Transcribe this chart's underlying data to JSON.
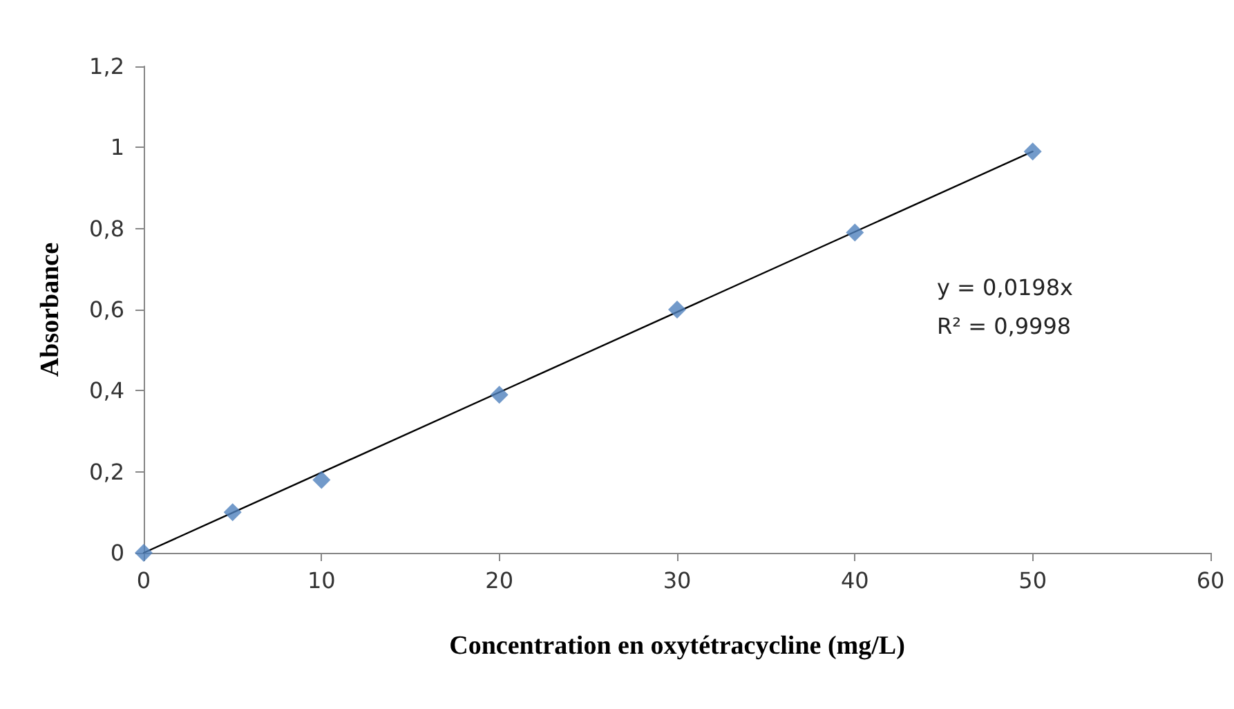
{
  "chart_data": {
    "type": "scatter",
    "xlabel": "Concentration en oxytétracycline (mg/L)",
    "ylabel": "Absorbance",
    "x": [
      0,
      5,
      10,
      20,
      30,
      40,
      50
    ],
    "series": [
      {
        "color": "#4f81bd",
        "marker": "diamond",
        "values": [
          0,
          0.1,
          0.18,
          0.39,
          0.6,
          0.79,
          0.99
        ]
      },
      {
        "type": "line",
        "color": "#000000",
        "marker": "none",
        "line_style": "solid",
        "x": [
          0,
          50
        ],
        "values": [
          0,
          0.99
        ]
      }
    ],
    "xlim": [
      0,
      60
    ],
    "xticks": [
      0,
      10,
      20,
      30,
      40,
      50,
      60
    ],
    "ylim": [
      0,
      1.2
    ],
    "yticks": [
      0,
      {
        "value": 0.2,
        "label": "0,2"
      },
      {
        "value": 0.4,
        "label": "0,4"
      },
      {
        "value": 0.6,
        "label": "0,6"
      },
      {
        "value": 0.8,
        "label": "0,8"
      },
      1,
      {
        "value": 1.2,
        "label": "1,2"
      }
    ],
    "annotations": [
      "y = 0,0198x",
      "R² = 0,9998"
    ],
    "grid": false
  }
}
